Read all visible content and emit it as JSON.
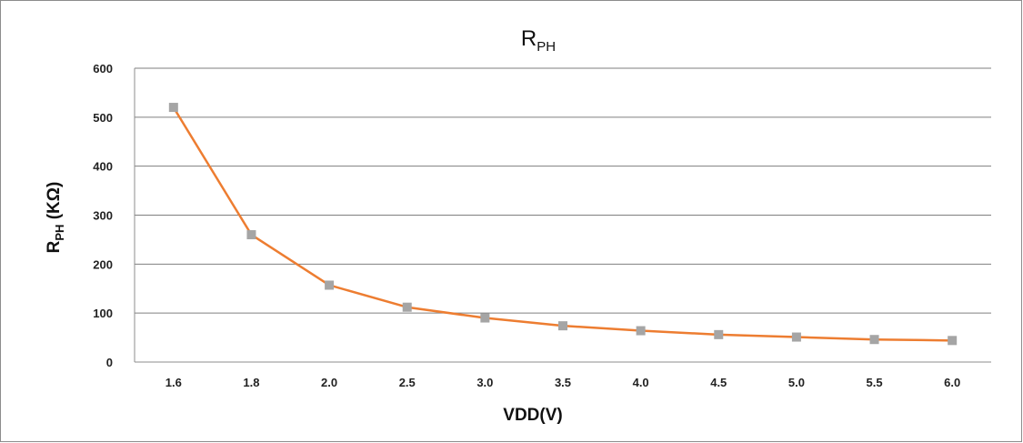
{
  "chart_data": {
    "type": "line",
    "title": "R",
    "title_subscript": "PH",
    "xlabel": "VDD(V)",
    "ylabel": "R",
    "ylabel_subscript": "PH",
    "ylabel_unit": " (KΩ)",
    "categories": [
      "1.6",
      "1.8",
      "2.0",
      "2.5",
      "3.0",
      "3.5",
      "4.0",
      "4.5",
      "5.0",
      "5.5",
      "6.0"
    ],
    "series": [
      {
        "values": [
          520,
          260,
          157,
          112,
          90,
          74,
          64,
          56,
          51,
          46,
          44
        ]
      }
    ],
    "ylim": [
      0,
      600
    ],
    "yticks": [
      "0",
      "100",
      "200",
      "300",
      "400",
      "500",
      "600"
    ],
    "grid": true,
    "line_color": "#ED7D31",
    "marker_color": "#A5A5A5"
  }
}
